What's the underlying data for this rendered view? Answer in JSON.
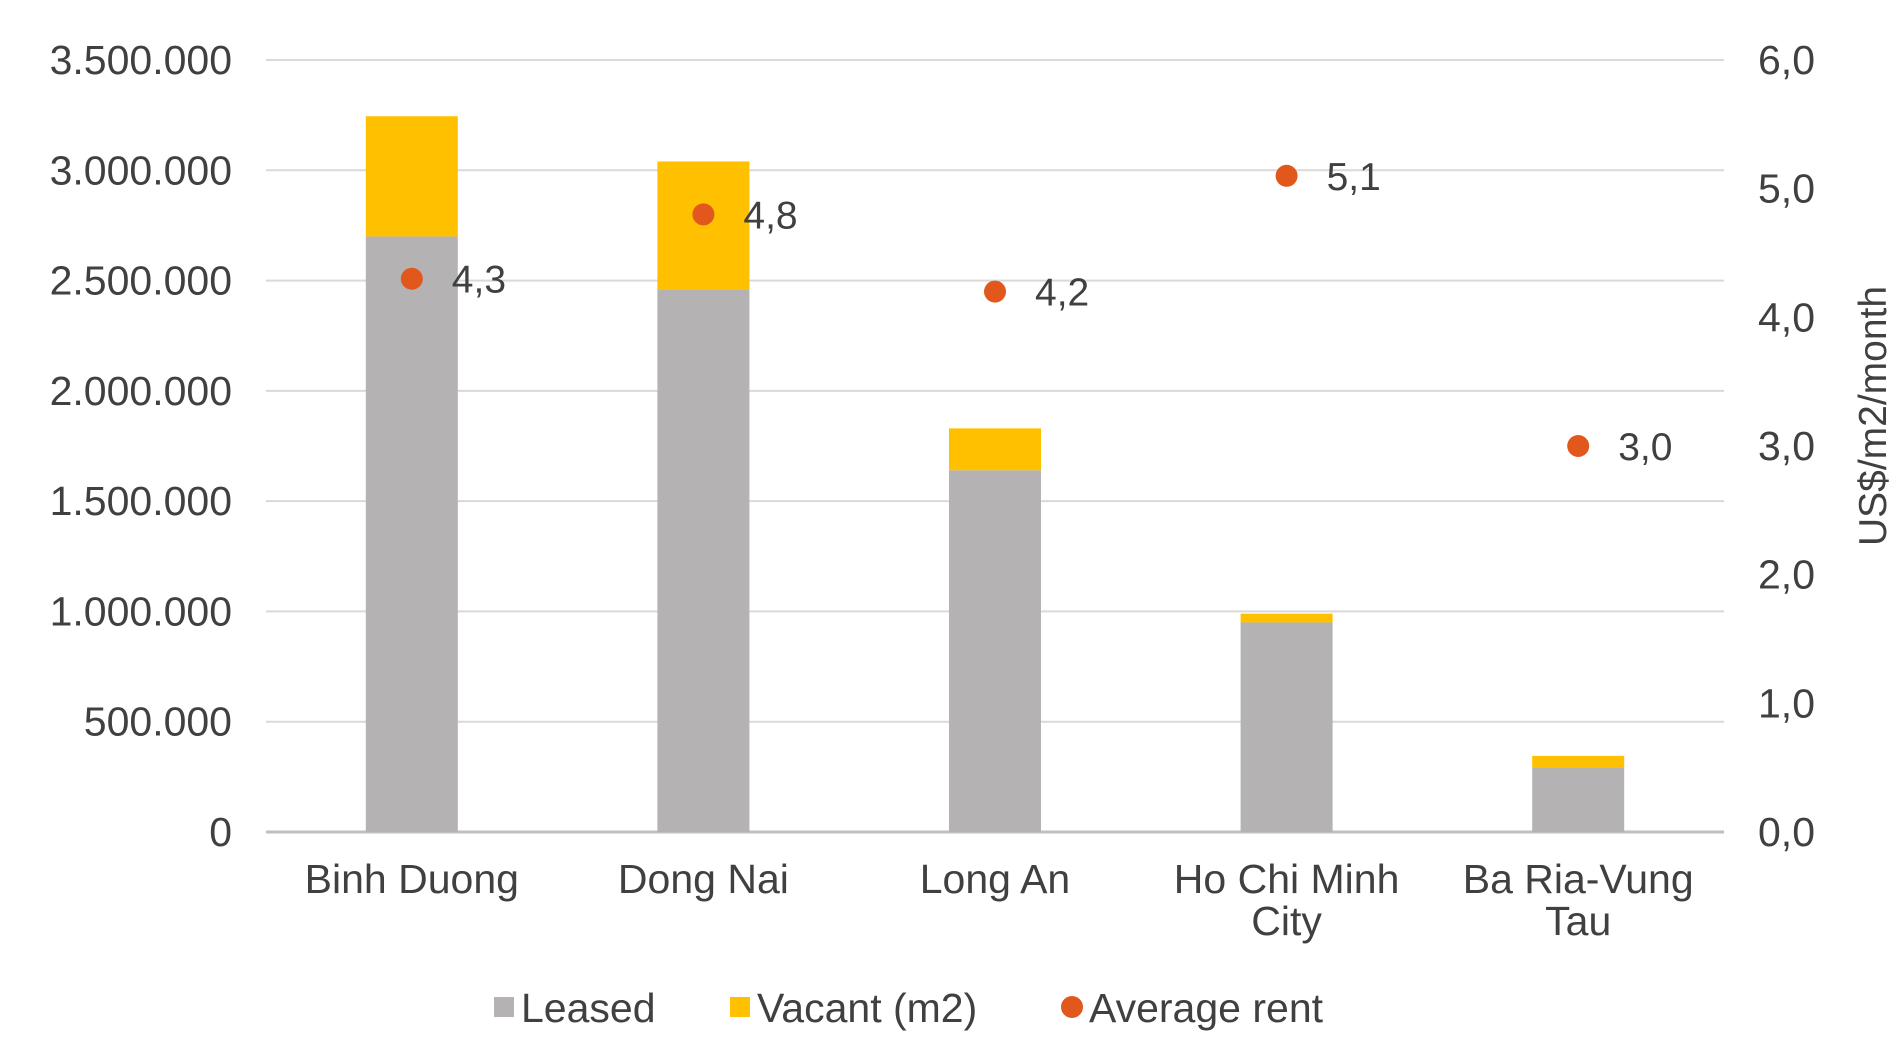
{
  "chart_data": {
    "type": "bar",
    "stacked": true,
    "categories": [
      [
        "Binh Duong"
      ],
      [
        "Dong Nai"
      ],
      [
        "Long An"
      ],
      [
        "Ho Chi Minh",
        "City"
      ],
      [
        "Ba Ria-Vung",
        "Tau"
      ]
    ],
    "series": [
      {
        "name": "Leased",
        "type": "bar",
        "axis": "left",
        "color": "#b4b2b2",
        "values": [
          2700000,
          2460000,
          1640000,
          950000,
          290000
        ]
      },
      {
        "name": "Vacant (m2)",
        "type": "bar",
        "axis": "left",
        "color": "#ffc000",
        "values": [
          545000,
          580000,
          190000,
          40000,
          55000
        ]
      },
      {
        "name": "Average rent",
        "type": "scatter",
        "axis": "right",
        "color": "#e2571c",
        "values": [
          4.3,
          4.8,
          4.2,
          5.1,
          3.0
        ],
        "labels": [
          "4,3",
          "4,8",
          "4,2",
          "5,1",
          "3,0"
        ]
      }
    ],
    "y_left": {
      "min": 0,
      "max": 3500000,
      "tick_labels": [
        "0",
        "500.000",
        "1.000.000",
        "1.500.000",
        "2.000.000",
        "2.500.000",
        "3.000.000",
        "3.500.000"
      ]
    },
    "y_right": {
      "min": 0,
      "max": 6,
      "label": "US$/m2/month",
      "tick_labels": [
        "0,0",
        "1,0",
        "2,0",
        "3,0",
        "4,0",
        "5,0",
        "6,0"
      ]
    },
    "grid": "horizontal",
    "legend": {
      "position": "bottom",
      "entries": [
        "Leased",
        "Vacant (m2)",
        "Average rent"
      ]
    },
    "title": "",
    "xlabel": ""
  }
}
